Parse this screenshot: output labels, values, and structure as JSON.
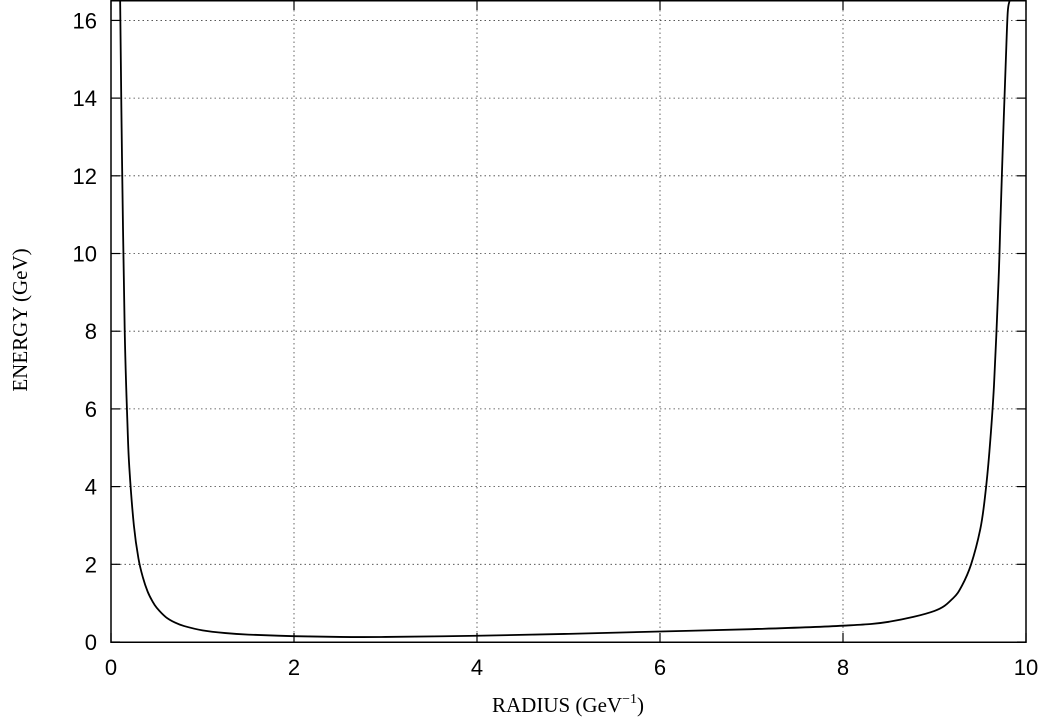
{
  "chart_data": {
    "type": "line",
    "title": "",
    "xlabel": {
      "text": "RADIUS  (GeV",
      "sup": "−1",
      "suffix": ")"
    },
    "ylabel": "ENERGY  (GeV)",
    "xlim": [
      0,
      10
    ],
    "ylim": [
      0,
      16.5
    ],
    "xticks": [
      0,
      2,
      4,
      6,
      8,
      10
    ],
    "xtick_labels": [
      "0",
      "2",
      "4",
      "6",
      "8",
      "10"
    ],
    "yticks": [
      0,
      2,
      4,
      6,
      8,
      10,
      12,
      14,
      16
    ],
    "ytick_labels": [
      "0",
      "2",
      "4",
      "6",
      "8",
      "10",
      "12",
      "14",
      "16"
    ],
    "grid": true,
    "series": [
      {
        "color": "#000000",
        "x": [
          0.1,
          0.12,
          0.15,
          0.18,
          0.2,
          0.25,
          0.3,
          0.35,
          0.4,
          0.45,
          0.5,
          0.6,
          0.7,
          0.8,
          1.0,
          1.25,
          1.5,
          2.0,
          2.5,
          3.0,
          4.0,
          5.0,
          6.0,
          7.0,
          8.0,
          8.5,
          9.0,
          9.2,
          9.3,
          9.4,
          9.5,
          9.55,
          9.6,
          9.65,
          9.7,
          9.72,
          9.75,
          9.78,
          9.8,
          9.82
        ],
        "y": [
          16.5,
          12.5,
          8.0,
          5.6,
          4.5,
          3.0,
          2.15,
          1.65,
          1.3,
          1.06,
          0.88,
          0.64,
          0.5,
          0.41,
          0.3,
          0.23,
          0.19,
          0.15,
          0.13,
          0.13,
          0.16,
          0.21,
          0.27,
          0.33,
          0.42,
          0.52,
          0.8,
          1.12,
          1.45,
          2.0,
          2.9,
          3.7,
          4.9,
          6.6,
          9.3,
          10.8,
          13.0,
          15.0,
          16.2,
          16.5
        ]
      }
    ]
  }
}
